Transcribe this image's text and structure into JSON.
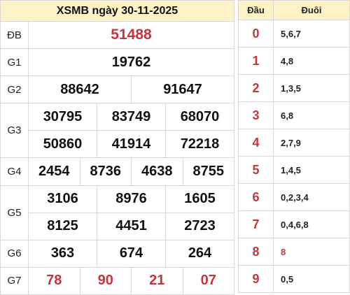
{
  "title": "XSMB ngày 30-11-2025",
  "prizes": {
    "db": {
      "label": "ĐB",
      "numbers": [
        "51488"
      ]
    },
    "g1": {
      "label": "G1",
      "numbers": [
        "19762"
      ]
    },
    "g2": {
      "label": "G2",
      "numbers": [
        "88642",
        "91647"
      ]
    },
    "g3": {
      "label": "G3",
      "numbers": [
        "30795",
        "83749",
        "68070",
        "50860",
        "41914",
        "72218"
      ]
    },
    "g4": {
      "label": "G4",
      "numbers": [
        "2454",
        "8736",
        "4638",
        "8755"
      ]
    },
    "g5": {
      "label": "G5",
      "numbers": [
        "3106",
        "8976",
        "1605",
        "8125",
        "4451",
        "2723"
      ]
    },
    "g6": {
      "label": "G6",
      "numbers": [
        "363",
        "674",
        "264"
      ]
    },
    "g7": {
      "label": "G7",
      "numbers": [
        "78",
        "90",
        "21",
        "07"
      ]
    }
  },
  "loto": {
    "head_label": "Đầu",
    "tail_label": "Đuôi",
    "rows": [
      {
        "head": "0",
        "tail": "5,6,7"
      },
      {
        "head": "1",
        "tail": "4,8"
      },
      {
        "head": "2",
        "tail": "1,3,5"
      },
      {
        "head": "3",
        "tail": "6,8"
      },
      {
        "head": "4",
        "tail": "2,7,9"
      },
      {
        "head": "5",
        "tail": "1,4,5"
      },
      {
        "head": "6",
        "tail": "0,2,3,4"
      },
      {
        "head": "7",
        "tail": "0,4,6,8"
      },
      {
        "head": "8",
        "tail": "8"
      },
      {
        "head": "9",
        "tail": "0,5"
      }
    ]
  },
  "colors": {
    "accent_red": "#c7343b",
    "header_bg": "#fdf3c4",
    "border": "#d8d8d8"
  }
}
